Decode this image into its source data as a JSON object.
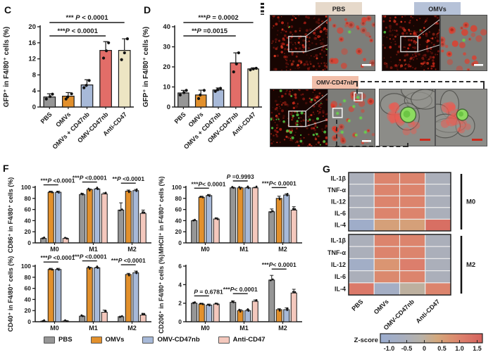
{
  "panel_labels": {
    "c": "C",
    "d": "D",
    "f": "F",
    "g": "G"
  },
  "legend": {
    "items": [
      {
        "label": "PBS",
        "color": "#969696"
      },
      {
        "label": "OMVs",
        "color": "#E2902C"
      },
      {
        "label": "OMV-CD47nb",
        "color": "#A7B9D8"
      },
      {
        "label": "Anti-CD47",
        "color": "#F4C8BD"
      }
    ]
  },
  "microscopy": {
    "chips": [
      {
        "id": "pbs",
        "label": "PBS",
        "bg": "#E6D9CA"
      },
      {
        "id": "omvs",
        "label": "OMVs",
        "bg": "#B6C2D8"
      },
      {
        "id": "omvnb",
        "label": "OMV-CD47nb",
        "bg": "#F2BFAA"
      }
    ]
  },
  "chart_data": [
    {
      "id": "C",
      "type": "bar",
      "ylabel": "GFP⁺ in F4/80⁺ cells (%)",
      "ylim": [
        0,
        20
      ],
      "yticks": [
        0,
        4,
        8,
        12,
        16,
        20
      ],
      "categories": [
        "PBS",
        "OMVs",
        "OMVs + CD47nb",
        "OMV-CD47nb",
        "Anti-CD47"
      ],
      "values": [
        2.5,
        2.7,
        5.5,
        14.1,
        14.1
      ],
      "errors": [
        0.8,
        0.9,
        1.3,
        2.2,
        2.9
      ],
      "points": [
        [
          2.0,
          2.6,
          3.2
        ],
        [
          2.0,
          2.5,
          3.3
        ],
        [
          4.8,
          5.4,
          6.6
        ],
        [
          12.2,
          14.0,
          16.0
        ],
        [
          11.8,
          13.5,
          17.0
        ]
      ],
      "bar_colors": [
        "#969696",
        "#E2902C",
        "#A7B9D8",
        "#E26D68",
        "#EDE5C3"
      ],
      "sig": [
        {
          "from": 0,
          "to": 4,
          "label": "*** P < 0.0001",
          "y": -6
        },
        {
          "from": 0,
          "to": 3,
          "label": "***P < 0.0001",
          "y": 13
        }
      ]
    },
    {
      "id": "D",
      "type": "bar",
      "ylabel": "GFP⁺ in F4/80⁺ cells (%)",
      "ylim": [
        0,
        40
      ],
      "yticks": [
        0,
        10,
        20,
        30,
        40
      ],
      "categories": [
        "PBS",
        "OMVs",
        "OMVs + CD47nb",
        "OMV-CD47nb",
        "Anti-CD47"
      ],
      "values": [
        7,
        6,
        8.5,
        22,
        19
      ],
      "errors": [
        1.3,
        2.4,
        1.0,
        5.0,
        0.5
      ],
      "points": [
        [
          6.0,
          7.2,
          8.3
        ],
        [
          4.2,
          6.0,
          8.3
        ],
        [
          7.8,
          8.6,
          9.3
        ],
        [
          17.5,
          21.5,
          27.0
        ],
        [
          18.5,
          19.0,
          19.3
        ]
      ],
      "bar_colors": [
        "#969696",
        "#E2902C",
        "#A7B9D8",
        "#E26D68",
        "#EDE5C3"
      ],
      "sig": [
        {
          "from": 0,
          "to": 4,
          "label": "***P = 0.0002",
          "y": -6
        },
        {
          "from": 0,
          "to": 3,
          "label": "**P =0.0015",
          "y": 13
        }
      ]
    },
    {
      "id": "F1",
      "type": "grouped-bar",
      "ylabel": "CD86⁺ in F4/80⁺ cells (%)",
      "ylim": [
        0,
        100
      ],
      "yticks": [
        0,
        20,
        40,
        60,
        80,
        100
      ],
      "groups": [
        "M0",
        "M1",
        "M2"
      ],
      "series": [
        {
          "name": "PBS",
          "color": "#969696",
          "values": [
            8,
            87,
            59
          ],
          "errors": [
            1,
            2,
            13
          ]
        },
        {
          "name": "OMVs",
          "color": "#E2902C",
          "values": [
            91,
            96,
            93
          ],
          "errors": [
            2,
            1,
            2
          ]
        },
        {
          "name": "OMV-CD47nb",
          "color": "#A7B9D8",
          "values": [
            91,
            97,
            94
          ],
          "errors": [
            2,
            1,
            2
          ]
        },
        {
          "name": "Anti-CD47",
          "color": "#F4C8BD",
          "values": [
            8,
            88,
            53
          ],
          "errors": [
            1,
            2,
            6
          ]
        }
      ],
      "sig": [
        "***P <0.0001",
        "***P <0.0001",
        "**P <0.0001"
      ]
    },
    {
      "id": "F2",
      "type": "grouped-bar",
      "ylabel": "MHCII⁺ in F4/80⁺ cells (%)",
      "ylim": [
        0,
        100
      ],
      "yticks": [
        0,
        20,
        40,
        60,
        80,
        100
      ],
      "groups": [
        "M0",
        "M1",
        "M2"
      ],
      "series": [
        {
          "name": "PBS",
          "color": "#969696",
          "values": [
            40,
            99,
            56
          ],
          "errors": [
            1,
            1,
            5
          ]
        },
        {
          "name": "OMVs",
          "color": "#E2902C",
          "values": [
            82,
            99,
            80
          ],
          "errors": [
            2,
            1,
            4
          ]
        },
        {
          "name": "OMV-CD47nb",
          "color": "#A7B9D8",
          "values": [
            85,
            99,
            86
          ],
          "errors": [
            2,
            1,
            2
          ]
        },
        {
          "name": "Anti-CD47",
          "color": "#F4C8BD",
          "values": [
            43,
            99,
            59
          ],
          "errors": [
            2,
            1,
            6
          ]
        }
      ],
      "sig": [
        "***P< 0.0001",
        "P =0.9993",
        "***P< 0.0001"
      ]
    },
    {
      "id": "F3",
      "type": "grouped-bar",
      "ylabel": "CD40⁺ in F4/80⁺ cells (%)",
      "ylim": [
        0,
        100
      ],
      "yticks": [
        0,
        20,
        40,
        60,
        80,
        100
      ],
      "groups": [
        "M0",
        "M1",
        "M2"
      ],
      "series": [
        {
          "name": "PBS",
          "color": "#969696",
          "values": [
            1,
            10,
            9
          ],
          "errors": [
            0.5,
            1,
            1
          ]
        },
        {
          "name": "OMVs",
          "color": "#E2902C",
          "values": [
            94,
            97,
            85
          ],
          "errors": [
            2,
            1,
            2
          ]
        },
        {
          "name": "OMV-CD47nb",
          "color": "#A7B9D8",
          "values": [
            94,
            97,
            88
          ],
          "errors": [
            2,
            1,
            3
          ]
        },
        {
          "name": "Anti-CD47",
          "color": "#F4C8BD",
          "values": [
            1.5,
            17,
            12
          ],
          "errors": [
            0.5,
            4,
            3
          ]
        }
      ],
      "sig": [
        "***P <0.0001",
        "***P <0.0001",
        "***P <0.0001"
      ]
    },
    {
      "id": "F4",
      "type": "grouped-bar",
      "ylabel": "CD206⁺ in F4/80⁺ cells (%)",
      "ylim": [
        0,
        6
      ],
      "yticks": [
        0,
        2,
        4,
        6
      ],
      "groups": [
        "M0",
        "M1",
        "M2"
      ],
      "series": [
        {
          "name": "PBS",
          "color": "#969696",
          "values": [
            2.0,
            2.1,
            4.5
          ],
          "errors": [
            0.1,
            0.15,
            0.5
          ]
        },
        {
          "name": "OMVs",
          "color": "#E2902C",
          "values": [
            1.9,
            1.2,
            1.3
          ],
          "errors": [
            0.1,
            0.1,
            0.1
          ]
        },
        {
          "name": "OMV-CD47nb",
          "color": "#A7B9D8",
          "values": [
            1.8,
            1.2,
            1.3
          ],
          "errors": [
            0.1,
            0.1,
            0.2
          ]
        },
        {
          "name": "Anti-CD47",
          "color": "#F4C8BD",
          "values": [
            1.9,
            2.2,
            3.1
          ],
          "errors": [
            0.1,
            0.15,
            0.4
          ]
        }
      ],
      "sig": [
        "P = 0.6781",
        "***P< 0.0001",
        "***P< 0.0001"
      ]
    },
    {
      "id": "G",
      "type": "heatmap",
      "columns": [
        "PBS",
        "OMVs",
        "OMV-CD47nb",
        "Anti-CD47"
      ],
      "blocks": [
        {
          "name": "M0",
          "rows": [
            "IL-1β",
            "TNF-α",
            "IL-12",
            "IL-6",
            "IL-4"
          ],
          "values": [
            [
              -0.5,
              1.0,
              1.0,
              -0.5
            ],
            [
              -0.5,
              1.0,
              1.0,
              -0.5
            ],
            [
              -0.5,
              1.0,
              1.0,
              -0.5
            ],
            [
              -0.5,
              1.0,
              1.0,
              -0.5
            ],
            [
              -1.0,
              0.5,
              0.5,
              1.4
            ]
          ]
        },
        {
          "name": "M2",
          "rows": [
            "IL-1β",
            "TNF-α",
            "IL-12",
            "IL-6",
            "IL-4"
          ],
          "values": [
            [
              -0.5,
              1.0,
              1.0,
              -0.5
            ],
            [
              -0.5,
              1.0,
              1.0,
              -0.5
            ],
            [
              -0.9,
              0.7,
              1.1,
              -0.5
            ],
            [
              -0.5,
              0.9,
              1.0,
              -0.5
            ],
            [
              1.2,
              -0.8,
              0.0,
              1.0
            ]
          ]
        }
      ],
      "colorbar": {
        "label": "Z-score",
        "ticks": [
          -1.0,
          -0.5,
          0,
          0.5,
          1.0,
          1.5
        ],
        "min": -1.25,
        "max": 1.65
      }
    }
  ]
}
